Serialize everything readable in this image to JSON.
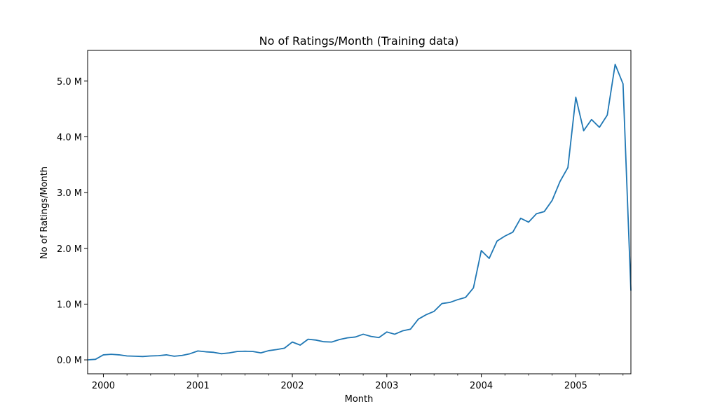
{
  "chart_data": {
    "type": "line",
    "title": "No of Ratings/Month (Training data)",
    "xlabel": "Month",
    "ylabel": "No of Ratings/Month",
    "grid": false,
    "legend": "none",
    "xlim": [
      "1999-11",
      "2005-08"
    ],
    "ylim": [
      -0.25,
      5.55
    ],
    "y_unit": "M",
    "x_ticks": [
      {
        "value": "2000-01",
        "label": "2000"
      },
      {
        "value": "2001-01",
        "label": "2001"
      },
      {
        "value": "2002-01",
        "label": "2002"
      },
      {
        "value": "2003-01",
        "label": "2003"
      },
      {
        "value": "2004-01",
        "label": "2004"
      },
      {
        "value": "2005-01",
        "label": "2005"
      }
    ],
    "y_ticks": [
      {
        "value": 0,
        "label": "0.0 M"
      },
      {
        "value": 1,
        "label": "1.0 M"
      },
      {
        "value": 2,
        "label": "2.0 M"
      },
      {
        "value": 3,
        "label": "3.0 M"
      },
      {
        "value": 4,
        "label": "4.0 M"
      },
      {
        "value": 5,
        "label": "5.0 M"
      }
    ],
    "series": [
      {
        "color": "#1f77b4",
        "x": [
          "1999-11",
          "1999-12",
          "2000-01",
          "2000-02",
          "2000-03",
          "2000-04",
          "2000-05",
          "2000-06",
          "2000-07",
          "2000-08",
          "2000-09",
          "2000-10",
          "2000-11",
          "2000-12",
          "2001-01",
          "2001-02",
          "2001-03",
          "2001-04",
          "2001-05",
          "2001-06",
          "2001-07",
          "2001-08",
          "2001-09",
          "2001-10",
          "2001-11",
          "2001-12",
          "2002-01",
          "2002-02",
          "2002-03",
          "2002-04",
          "2002-05",
          "2002-06",
          "2002-07",
          "2002-08",
          "2002-09",
          "2002-10",
          "2002-11",
          "2002-12",
          "2003-01",
          "2003-02",
          "2003-03",
          "2003-04",
          "2003-05",
          "2003-06",
          "2003-07",
          "2003-08",
          "2003-09",
          "2003-10",
          "2003-11",
          "2003-12",
          "2004-01",
          "2004-02",
          "2004-03",
          "2004-04",
          "2004-05",
          "2004-06",
          "2004-07",
          "2004-08",
          "2004-09",
          "2004-10",
          "2004-11",
          "2004-12",
          "2005-01",
          "2005-02",
          "2005-03",
          "2005-04",
          "2005-05",
          "2005-06",
          "2005-07",
          "2005-08"
        ],
        "y": [
          0.0,
          0.01,
          0.09,
          0.1,
          0.09,
          0.07,
          0.065,
          0.06,
          0.07,
          0.075,
          0.09,
          0.065,
          0.08,
          0.11,
          0.16,
          0.145,
          0.135,
          0.11,
          0.125,
          0.15,
          0.155,
          0.15,
          0.125,
          0.165,
          0.185,
          0.21,
          0.32,
          0.265,
          0.37,
          0.355,
          0.325,
          0.32,
          0.365,
          0.395,
          0.41,
          0.46,
          0.42,
          0.4,
          0.5,
          0.46,
          0.52,
          0.55,
          0.73,
          0.81,
          0.87,
          1.01,
          1.03,
          1.08,
          1.12,
          1.29,
          1.96,
          1.82,
          2.13,
          2.22,
          2.29,
          2.54,
          2.47,
          2.62,
          2.66,
          2.86,
          3.2,
          3.45,
          4.71,
          4.11,
          4.31,
          4.17,
          4.39,
          5.3,
          4.95,
          1.24
        ]
      }
    ]
  }
}
